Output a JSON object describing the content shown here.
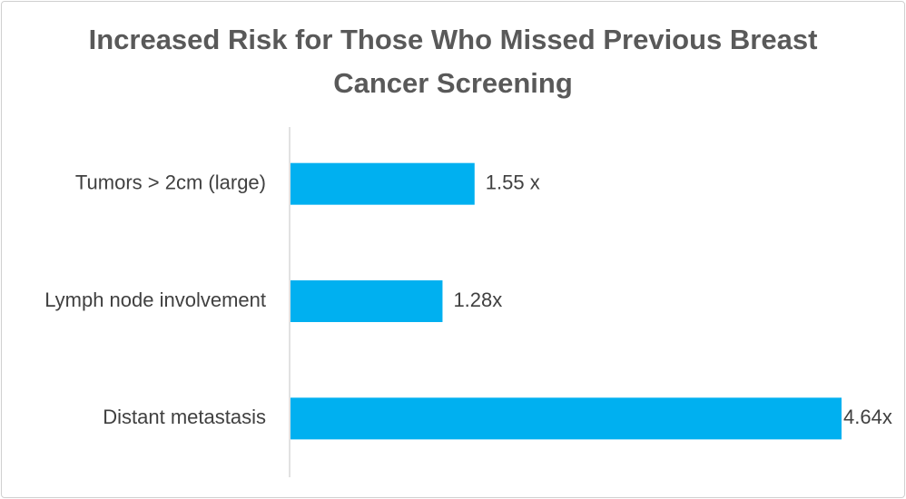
{
  "chart_data": {
    "type": "bar",
    "orientation": "horizontal",
    "title": "Increased Risk for Those Who Missed Previous Breast Cancer Screening",
    "categories": [
      "Tumors > 2cm (large)",
      "Lymph node involvement",
      "Distant metastasis"
    ],
    "values": [
      1.55,
      1.28,
      4.64
    ],
    "value_labels": [
      "1.55 x",
      "1.28x",
      "4.64x"
    ],
    "color": "#00b0f0"
  }
}
